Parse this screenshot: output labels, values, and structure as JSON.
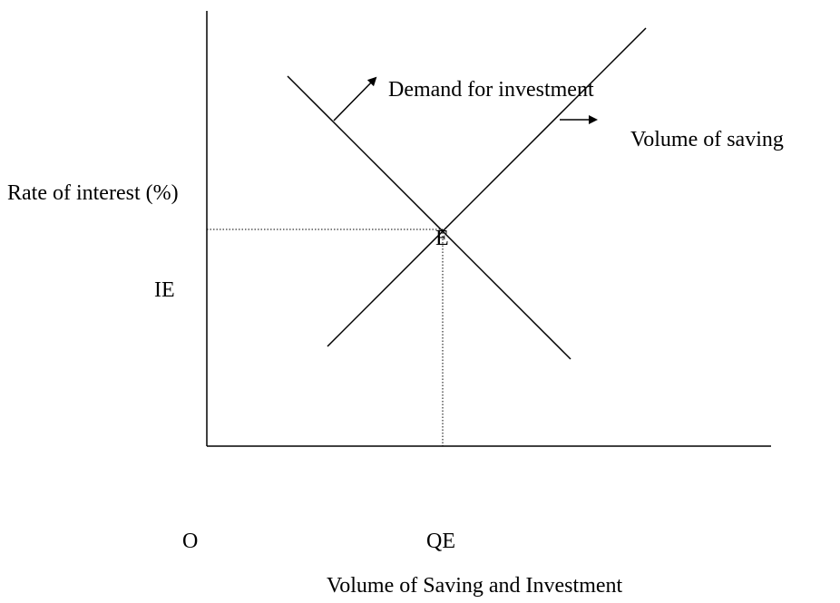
{
  "labels": {
    "demand": "Demand for investment",
    "saving": "Volume of saving",
    "y_axis": "Rate of interest (%)",
    "ie": "IE",
    "equilibrium": "E",
    "origin": "O",
    "qe": "QE",
    "x_axis": "Volume of Saving and Investment"
  }
}
